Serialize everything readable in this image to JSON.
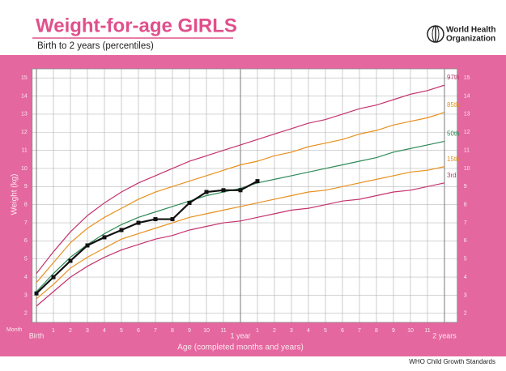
{
  "chart_data": {
    "type": "line",
    "title": "Weight-for-age GIRLS",
    "subtitle": "Birth to 2 years (percentiles)",
    "organization": [
      "World Health",
      "Organization"
    ],
    "source": "WHO Child Growth Standards",
    "x_label": "Age (completed months and years)",
    "x_unit_label": "Month",
    "y_label": "Weight (kg)",
    "x": [
      0,
      1,
      2,
      3,
      4,
      5,
      6,
      7,
      8,
      9,
      10,
      11,
      12,
      13,
      14,
      15,
      16,
      17,
      18,
      19,
      20,
      21,
      22,
      23,
      24
    ],
    "xlim": [
      -0.25,
      24.75
    ],
    "xticks": [
      {
        "value": 0,
        "label": "Birth"
      },
      1,
      2,
      3,
      4,
      5,
      6,
      7,
      8,
      9,
      10,
      11,
      {
        "value": 12,
        "label": "1 year"
      },
      {
        "value": 13,
        "label": "1"
      },
      {
        "value": 14,
        "label": "2"
      },
      {
        "value": 15,
        "label": "3"
      },
      {
        "value": 16,
        "label": "4"
      },
      {
        "value": 17,
        "label": "5"
      },
      {
        "value": 18,
        "label": "6"
      },
      {
        "value": 19,
        "label": "7"
      },
      {
        "value": 20,
        "label": "8"
      },
      {
        "value": 21,
        "label": "9"
      },
      {
        "value": 22,
        "label": "10"
      },
      {
        "value": 23,
        "label": "11"
      },
      {
        "value": 24,
        "label": "2 years"
      }
    ],
    "ylim": [
      1.5,
      15.5
    ],
    "yticks": [
      2,
      3,
      4,
      5,
      6,
      7,
      8,
      9,
      10,
      11,
      12,
      13,
      14,
      15
    ],
    "grid": true,
    "series": [
      {
        "name": "97th",
        "color": "#c4336f",
        "values": [
          4.2,
          5.4,
          6.5,
          7.4,
          8.1,
          8.7,
          9.2,
          9.6,
          10.0,
          10.4,
          10.7,
          11.0,
          11.3,
          11.6,
          11.9,
          12.2,
          12.5,
          12.7,
          13.0,
          13.3,
          13.5,
          13.8,
          14.1,
          14.3,
          14.6
        ]
      },
      {
        "name": "85th",
        "color": "#e8901e",
        "values": [
          3.7,
          4.8,
          5.9,
          6.7,
          7.3,
          7.8,
          8.3,
          8.7,
          9.0,
          9.3,
          9.6,
          9.9,
          10.2,
          10.4,
          10.7,
          10.9,
          11.2,
          11.4,
          11.6,
          11.9,
          12.1,
          12.4,
          12.6,
          12.8,
          13.1
        ]
      },
      {
        "name": "50th",
        "color": "#2e8a57",
        "values": [
          3.2,
          4.2,
          5.1,
          5.8,
          6.4,
          6.9,
          7.3,
          7.6,
          7.9,
          8.2,
          8.5,
          8.7,
          8.9,
          9.2,
          9.4,
          9.6,
          9.8,
          10.0,
          10.2,
          10.4,
          10.6,
          10.9,
          11.1,
          11.3,
          11.5
        ]
      },
      {
        "name": "15th",
        "color": "#e8901e",
        "values": [
          2.8,
          3.6,
          4.5,
          5.1,
          5.6,
          6.1,
          6.4,
          6.7,
          7.0,
          7.3,
          7.5,
          7.7,
          7.9,
          8.1,
          8.3,
          8.5,
          8.7,
          8.8,
          9.0,
          9.2,
          9.4,
          9.6,
          9.8,
          9.9,
          10.1
        ]
      },
      {
        "name": "3rd",
        "color": "#c4336f",
        "values": [
          2.4,
          3.2,
          4.0,
          4.6,
          5.1,
          5.5,
          5.8,
          6.1,
          6.3,
          6.6,
          6.8,
          7.0,
          7.1,
          7.3,
          7.5,
          7.7,
          7.8,
          8.0,
          8.2,
          8.3,
          8.5,
          8.7,
          8.8,
          9.0,
          9.2
        ]
      }
    ],
    "child": {
      "color": "#111111",
      "x": [
        0,
        1,
        2,
        3,
        4,
        5,
        6,
        7,
        8,
        9,
        10,
        11,
        12,
        13
      ],
      "values": [
        3.1,
        4.0,
        4.9,
        5.75,
        6.2,
        6.6,
        7.0,
        7.2,
        7.2,
        8.1,
        8.7,
        8.8,
        8.8,
        9.3
      ]
    }
  }
}
